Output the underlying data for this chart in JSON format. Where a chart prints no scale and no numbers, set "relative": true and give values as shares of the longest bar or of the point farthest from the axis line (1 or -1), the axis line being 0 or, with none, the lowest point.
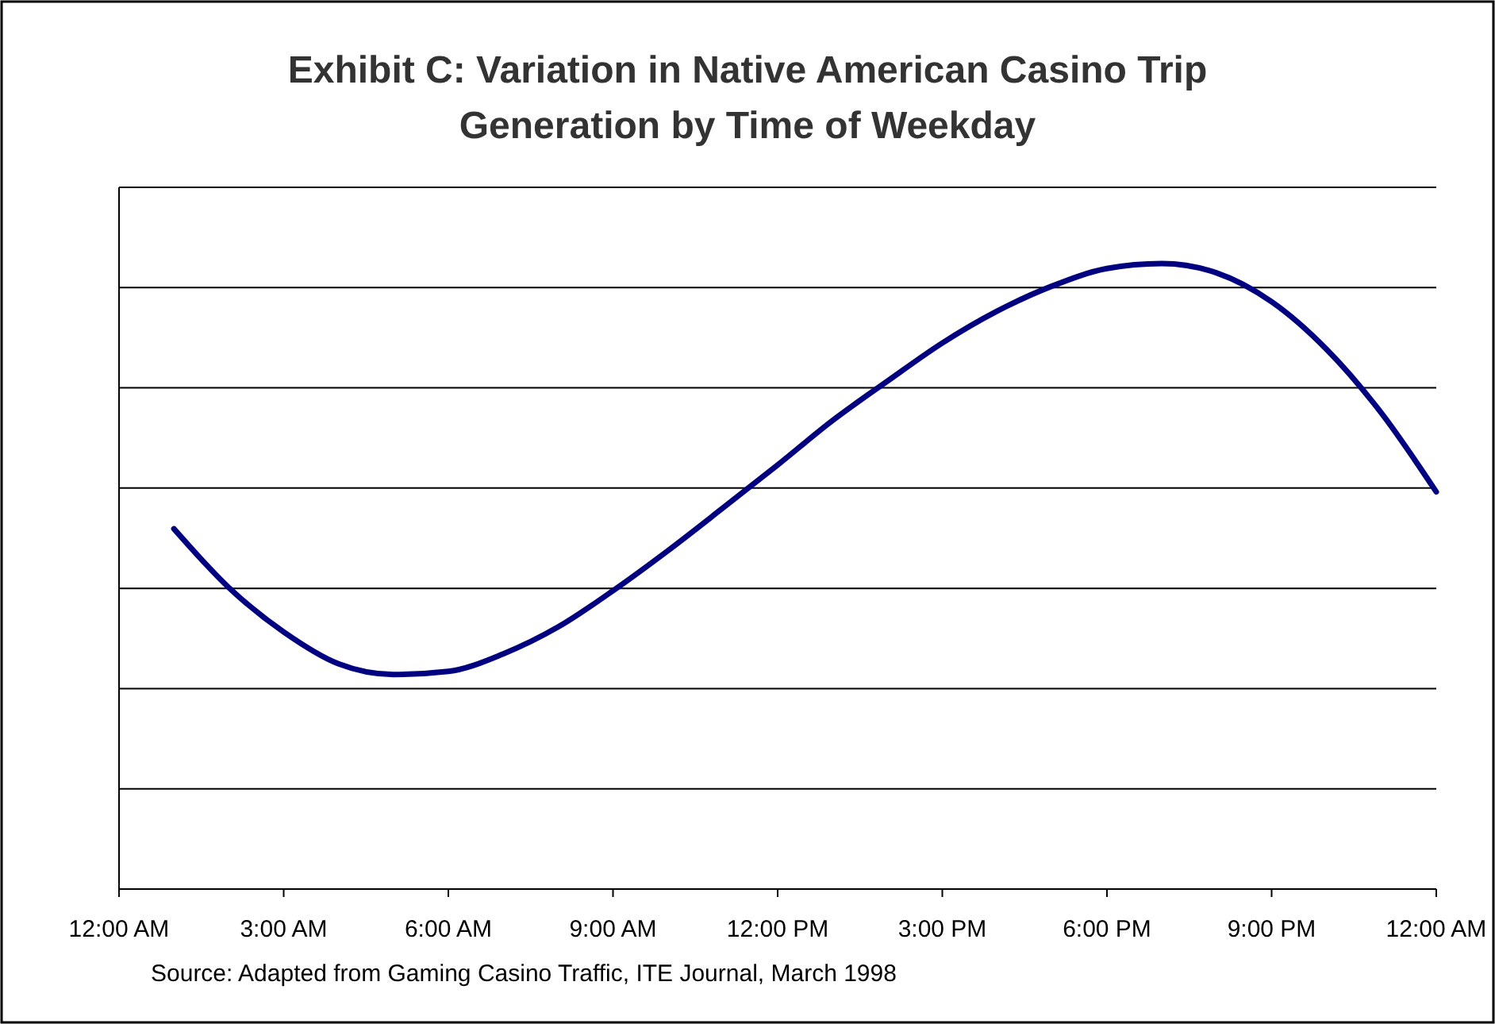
{
  "chart_data": {
    "type": "line",
    "title": "Exhibit C: Variation in Native American Casino Trip Generation by Time of Weekday",
    "relative": true,
    "grid": true,
    "marker": "none",
    "line_style": "solid",
    "xlim": [
      0,
      24
    ],
    "xticks": [
      {
        "value": 0,
        "label": "12:00 AM"
      },
      {
        "value": 3,
        "label": "3:00 AM"
      },
      {
        "value": 6,
        "label": "6:00 AM"
      },
      {
        "value": 9,
        "label": "9:00 AM"
      },
      {
        "value": 12,
        "label": "12:00 PM"
      },
      {
        "value": 15,
        "label": "3:00 PM"
      },
      {
        "value": 18,
        "label": "6:00 PM"
      },
      {
        "value": 21,
        "label": "9:00 PM"
      },
      {
        "value": 24,
        "label": "12:00 AM"
      }
    ],
    "x": [
      1,
      2,
      3,
      4,
      5,
      6,
      7,
      8,
      9,
      10,
      11,
      12,
      13,
      14,
      15,
      16,
      17,
      18,
      19,
      20,
      21,
      22,
      23,
      24
    ],
    "series": [
      {
        "color": "#000080",
        "values": [
          0.576,
          0.482,
          0.411,
          0.36,
          0.343,
          0.348,
          0.376,
          0.419,
          0.477,
          0.541,
          0.609,
          0.678,
          0.749,
          0.812,
          0.873,
          0.924,
          0.964,
          0.992,
          1,
          0.985,
          0.939,
          0.863,
          0.761,
          0.635
        ]
      }
    ],
    "annotations": [
      "Source: Adapted from Gaming Casino Traffic, ITE Journal, March 1998"
    ]
  }
}
